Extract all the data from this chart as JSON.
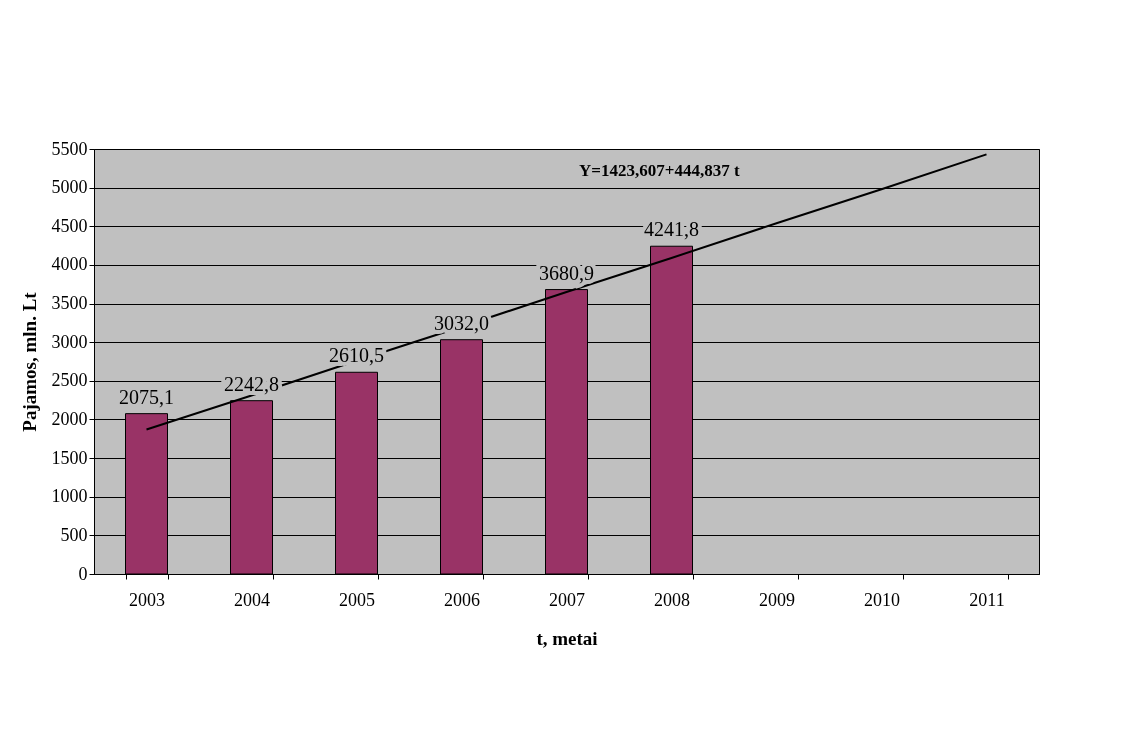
{
  "chart_data": {
    "type": "bar",
    "categories": [
      "2003",
      "2004",
      "2005",
      "2006",
      "2007",
      "2008",
      "2009",
      "2010",
      "2011"
    ],
    "series": [
      {
        "color": "#993366",
        "values": [
          2075.1,
          2242.8,
          2610.5,
          3032.0,
          3680.9,
          4241.8,
          null,
          null,
          null
        ],
        "value_labels": [
          "2075,1",
          "2242,8",
          "2610,5",
          "3032,0",
          "3680,9",
          "4241,8",
          null,
          null,
          null
        ]
      },
      {
        "type": "line",
        "color": "#000000",
        "values": [
          1870,
          2310,
          2760,
          3200,
          3650,
          4090,
          4540,
          4980,
          5430
        ]
      }
    ],
    "xlabel": "t, metai",
    "ylabel": "Pajamos, mln. Lt",
    "ylim": [
      0,
      5500
    ],
    "yticks": [
      0,
      500,
      1000,
      1500,
      2000,
      2500,
      3000,
      3500,
      4000,
      4500,
      5000,
      5500
    ],
    "annotations": [
      "Y=1423,607+444,837 t"
    ],
    "grid": "y"
  }
}
